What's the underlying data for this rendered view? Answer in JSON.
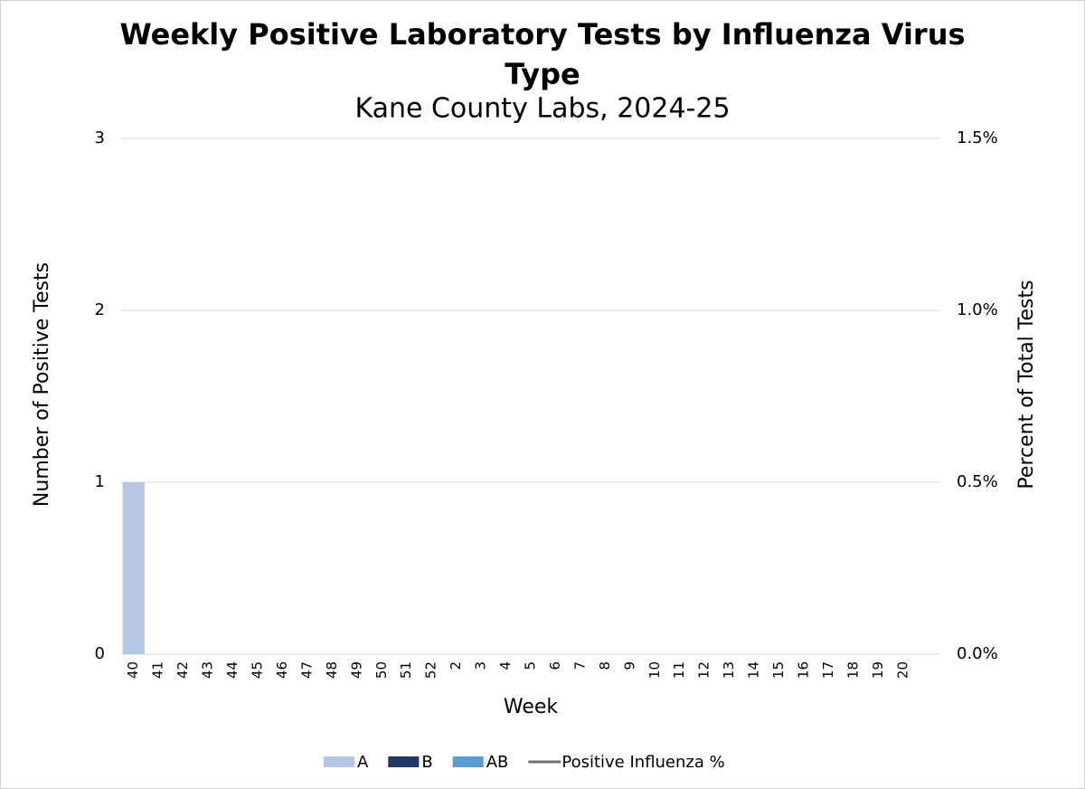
{
  "chart_data": {
    "type": "bar",
    "stacked": true,
    "title": "Weekly Positive Laboratory Tests by Influenza Virus Type",
    "subtitle": "Kane County Labs, 2024-25",
    "x_label": "Week",
    "y_label": "Number of Positive Tests",
    "y2_label": "Percent of Total Tests",
    "categories": [
      "40",
      "41",
      "42",
      "43",
      "44",
      "45",
      "46",
      "47",
      "48",
      "49",
      "50",
      "51",
      "52",
      "2",
      "3",
      "4",
      "5",
      "6",
      "7",
      "8",
      "9",
      "10",
      "11",
      "12",
      "13",
      "14",
      "15",
      "16",
      "17",
      "18",
      "19",
      "20",
      null
    ],
    "series": [
      {
        "name": "A",
        "type": "bar",
        "color": "#b4c7e7",
        "values": [
          1,
          0,
          0,
          0,
          0,
          0,
          0,
          0,
          0,
          0,
          0,
          0,
          0,
          0,
          0,
          0,
          0,
          0,
          0,
          0,
          0,
          0,
          0,
          0,
          0,
          0,
          0,
          0,
          0,
          0,
          0,
          0,
          null
        ]
      },
      {
        "name": "B",
        "type": "bar",
        "color": "#203864",
        "values": [
          0,
          0,
          0,
          0,
          0,
          0,
          0,
          0,
          0,
          0,
          0,
          0,
          0,
          0,
          0,
          0,
          0,
          0,
          0,
          0,
          0,
          0,
          0,
          0,
          0,
          0,
          0,
          0,
          0,
          0,
          0,
          0,
          null
        ]
      },
      {
        "name": "AB",
        "type": "bar",
        "color": "#5b9bd5",
        "values": [
          0,
          0,
          0,
          0,
          0,
          0,
          0,
          0,
          0,
          0,
          0,
          0,
          0,
          0,
          0,
          0,
          0,
          0,
          0,
          0,
          0,
          0,
          0,
          0,
          0,
          0,
          0,
          0,
          0,
          0,
          0,
          0,
          null
        ]
      },
      {
        "name": "Positive Influenza %",
        "type": "line",
        "axis": "y2",
        "color": "#767171",
        "values": [
          null,
          null,
          null,
          null,
          null,
          null,
          null,
          null,
          null,
          null,
          null,
          null,
          null,
          null,
          null,
          null,
          null,
          null,
          null,
          null,
          null,
          null,
          null,
          null,
          null,
          null,
          null,
          null,
          null,
          null,
          null,
          null,
          null
        ]
      }
    ],
    "ylim": [
      0,
      3
    ],
    "yticks": [
      0,
      1,
      2,
      3
    ],
    "y2lim": [
      0,
      1.5
    ],
    "y2ticks": [
      {
        "value": 0,
        "label": "0.0%"
      },
      {
        "value": 0.5,
        "label": "0.5%"
      },
      {
        "value": 1,
        "label": "1.0%"
      },
      {
        "value": 1.5,
        "label": "1.5%"
      }
    ],
    "grid": true,
    "legend": "bottom"
  }
}
